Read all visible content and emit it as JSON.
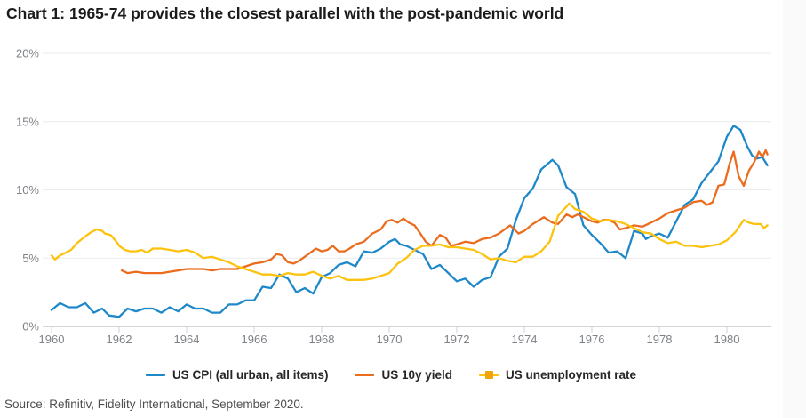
{
  "title": "Chart 1: 1965-74 provides the closest parallel with the post-pandemic world",
  "source": "Source: Refinitiv, Fidelity International, September 2020.",
  "colors": {
    "grid": "#e9ebee",
    "axis": "#a6abb2",
    "tick": "#c8d1e0",
    "axis_text": "#7e8287",
    "title_text": "#1b1b1b",
    "legend_text": "#262626",
    "source_text": "#4f4f4f"
  },
  "chart_data": {
    "type": "line",
    "title": "Chart 1: 1965-74 provides the closest parallel with the post-pandemic world",
    "xlabel": "",
    "ylabel": "",
    "grid": "horizontal",
    "legend_position": "bottom",
    "x_axis": {
      "min": 1960,
      "max": 1981.3,
      "tick_years": [
        1960,
        1962,
        1964,
        1966,
        1968,
        1970,
        1972,
        1974,
        1976,
        1978,
        1980
      ]
    },
    "y_axis": {
      "min": 0,
      "max": 20,
      "ticks": [
        0,
        5,
        10,
        15,
        20
      ],
      "tick_suffix": "%"
    },
    "series": [
      {
        "id": "us-cpi",
        "name": "US CPI (all urban, all items)",
        "color": "#1e88c8",
        "legend_marker": "line",
        "points": [
          [
            1960.0,
            1.2
          ],
          [
            1960.25,
            1.7
          ],
          [
            1960.5,
            1.4
          ],
          [
            1960.75,
            1.4
          ],
          [
            1961.0,
            1.7
          ],
          [
            1961.25,
            1.0
          ],
          [
            1961.5,
            1.3
          ],
          [
            1961.7,
            0.8
          ],
          [
            1962.0,
            0.7
          ],
          [
            1962.25,
            1.3
          ],
          [
            1962.5,
            1.1
          ],
          [
            1962.75,
            1.3
          ],
          [
            1963.0,
            1.3
          ],
          [
            1963.25,
            1.0
          ],
          [
            1963.5,
            1.4
          ],
          [
            1963.75,
            1.1
          ],
          [
            1964.0,
            1.6
          ],
          [
            1964.25,
            1.3
          ],
          [
            1964.5,
            1.3
          ],
          [
            1964.75,
            1.0
          ],
          [
            1965.0,
            1.0
          ],
          [
            1965.25,
            1.6
          ],
          [
            1965.5,
            1.6
          ],
          [
            1965.75,
            1.9
          ],
          [
            1966.0,
            1.9
          ],
          [
            1966.25,
            2.9
          ],
          [
            1966.5,
            2.8
          ],
          [
            1966.75,
            3.8
          ],
          [
            1967.0,
            3.5
          ],
          [
            1967.25,
            2.5
          ],
          [
            1967.5,
            2.8
          ],
          [
            1967.75,
            2.4
          ],
          [
            1968.0,
            3.6
          ],
          [
            1968.25,
            3.9
          ],
          [
            1968.5,
            4.5
          ],
          [
            1968.75,
            4.7
          ],
          [
            1969.0,
            4.4
          ],
          [
            1969.25,
            5.5
          ],
          [
            1969.5,
            5.4
          ],
          [
            1969.75,
            5.7
          ],
          [
            1970.0,
            6.2
          ],
          [
            1970.17,
            6.4
          ],
          [
            1970.33,
            6.0
          ],
          [
            1970.5,
            5.9
          ],
          [
            1970.75,
            5.6
          ],
          [
            1971.0,
            5.3
          ],
          [
            1971.25,
            4.2
          ],
          [
            1971.5,
            4.5
          ],
          [
            1971.75,
            3.9
          ],
          [
            1972.0,
            3.3
          ],
          [
            1972.25,
            3.5
          ],
          [
            1972.5,
            2.9
          ],
          [
            1972.75,
            3.4
          ],
          [
            1973.0,
            3.6
          ],
          [
            1973.25,
            5.1
          ],
          [
            1973.5,
            5.7
          ],
          [
            1973.75,
            7.8
          ],
          [
            1974.0,
            9.4
          ],
          [
            1974.25,
            10.1
          ],
          [
            1974.5,
            11.5
          ],
          [
            1974.83,
            12.2
          ],
          [
            1975.0,
            11.8
          ],
          [
            1975.25,
            10.2
          ],
          [
            1975.5,
            9.7
          ],
          [
            1975.75,
            7.4
          ],
          [
            1976.0,
            6.7
          ],
          [
            1976.25,
            6.1
          ],
          [
            1976.5,
            5.4
          ],
          [
            1976.75,
            5.5
          ],
          [
            1977.0,
            5.0
          ],
          [
            1977.25,
            7.0
          ],
          [
            1977.5,
            6.8
          ],
          [
            1977.6,
            6.4
          ],
          [
            1977.75,
            6.6
          ],
          [
            1978.0,
            6.8
          ],
          [
            1978.25,
            6.5
          ],
          [
            1978.5,
            7.7
          ],
          [
            1978.75,
            8.9
          ],
          [
            1979.0,
            9.3
          ],
          [
            1979.25,
            10.5
          ],
          [
            1979.5,
            11.3
          ],
          [
            1979.75,
            12.1
          ],
          [
            1980.0,
            13.9
          ],
          [
            1980.2,
            14.7
          ],
          [
            1980.4,
            14.4
          ],
          [
            1980.6,
            13.2
          ],
          [
            1980.75,
            12.5
          ],
          [
            1980.9,
            12.3
          ],
          [
            1981.05,
            12.4
          ],
          [
            1981.2,
            11.8
          ]
        ]
      },
      {
        "id": "us-10y-yield",
        "name": "US 10y yield",
        "color": "#eb6c1e",
        "legend_marker": "line",
        "points": [
          [
            1962.08,
            4.1
          ],
          [
            1962.25,
            3.9
          ],
          [
            1962.5,
            4.0
          ],
          [
            1962.75,
            3.9
          ],
          [
            1963.0,
            3.9
          ],
          [
            1963.25,
            3.9
          ],
          [
            1963.5,
            4.0
          ],
          [
            1963.75,
            4.1
          ],
          [
            1964.0,
            4.2
          ],
          [
            1964.25,
            4.2
          ],
          [
            1964.5,
            4.2
          ],
          [
            1964.75,
            4.1
          ],
          [
            1965.0,
            4.2
          ],
          [
            1965.25,
            4.2
          ],
          [
            1965.5,
            4.2
          ],
          [
            1965.75,
            4.4
          ],
          [
            1966.0,
            4.6
          ],
          [
            1966.25,
            4.7
          ],
          [
            1966.5,
            4.9
          ],
          [
            1966.67,
            5.3
          ],
          [
            1966.83,
            5.2
          ],
          [
            1967.0,
            4.7
          ],
          [
            1967.17,
            4.6
          ],
          [
            1967.33,
            4.8
          ],
          [
            1967.5,
            5.1
          ],
          [
            1967.67,
            5.4
          ],
          [
            1967.83,
            5.7
          ],
          [
            1968.0,
            5.5
          ],
          [
            1968.17,
            5.6
          ],
          [
            1968.33,
            5.9
          ],
          [
            1968.5,
            5.5
          ],
          [
            1968.67,
            5.5
          ],
          [
            1968.83,
            5.7
          ],
          [
            1969.0,
            6.0
          ],
          [
            1969.25,
            6.2
          ],
          [
            1969.5,
            6.8
          ],
          [
            1969.75,
            7.1
          ],
          [
            1969.92,
            7.7
          ],
          [
            1970.08,
            7.8
          ],
          [
            1970.25,
            7.6
          ],
          [
            1970.42,
            7.9
          ],
          [
            1970.58,
            7.6
          ],
          [
            1970.75,
            7.4
          ],
          [
            1970.92,
            6.8
          ],
          [
            1971.08,
            6.2
          ],
          [
            1971.25,
            5.9
          ],
          [
            1971.5,
            6.7
          ],
          [
            1971.67,
            6.5
          ],
          [
            1971.83,
            5.9
          ],
          [
            1972.0,
            6.0
          ],
          [
            1972.25,
            6.2
          ],
          [
            1972.5,
            6.1
          ],
          [
            1972.75,
            6.4
          ],
          [
            1973.0,
            6.5
          ],
          [
            1973.25,
            6.8
          ],
          [
            1973.58,
            7.4
          ],
          [
            1973.83,
            6.8
          ],
          [
            1974.0,
            7.0
          ],
          [
            1974.25,
            7.5
          ],
          [
            1974.58,
            8.0
          ],
          [
            1974.83,
            7.6
          ],
          [
            1975.0,
            7.5
          ],
          [
            1975.25,
            8.2
          ],
          [
            1975.42,
            8.0
          ],
          [
            1975.58,
            8.2
          ],
          [
            1975.75,
            8.0
          ],
          [
            1976.0,
            7.7
          ],
          [
            1976.17,
            7.6
          ],
          [
            1976.33,
            7.8
          ],
          [
            1976.5,
            7.8
          ],
          [
            1976.67,
            7.6
          ],
          [
            1976.83,
            7.1
          ],
          [
            1977.0,
            7.2
          ],
          [
            1977.25,
            7.4
          ],
          [
            1977.5,
            7.3
          ],
          [
            1977.75,
            7.6
          ],
          [
            1978.0,
            7.9
          ],
          [
            1978.25,
            8.3
          ],
          [
            1978.5,
            8.5
          ],
          [
            1978.75,
            8.7
          ],
          [
            1979.0,
            9.1
          ],
          [
            1979.25,
            9.2
          ],
          [
            1979.42,
            8.9
          ],
          [
            1979.58,
            9.1
          ],
          [
            1979.75,
            10.3
          ],
          [
            1979.92,
            10.4
          ],
          [
            1980.08,
            11.9
          ],
          [
            1980.2,
            12.8
          ],
          [
            1980.35,
            11.0
          ],
          [
            1980.5,
            10.3
          ],
          [
            1980.65,
            11.4
          ],
          [
            1980.8,
            12.0
          ],
          [
            1980.95,
            12.8
          ],
          [
            1981.05,
            12.4
          ],
          [
            1981.15,
            12.9
          ],
          [
            1981.2,
            12.6
          ]
        ]
      },
      {
        "id": "us-unemployment",
        "name": "US unemployment rate",
        "color": "#fdc20e",
        "marker_color": "#f2a50a",
        "legend_marker": "line-square",
        "points": [
          [
            1960.0,
            5.2
          ],
          [
            1960.1,
            4.9
          ],
          [
            1960.25,
            5.2
          ],
          [
            1960.42,
            5.4
          ],
          [
            1960.58,
            5.6
          ],
          [
            1960.75,
            6.1
          ],
          [
            1961.0,
            6.6
          ],
          [
            1961.17,
            6.9
          ],
          [
            1961.33,
            7.1
          ],
          [
            1961.5,
            7.0
          ],
          [
            1961.58,
            6.8
          ],
          [
            1961.75,
            6.7
          ],
          [
            1961.92,
            6.2
          ],
          [
            1962.0,
            5.9
          ],
          [
            1962.17,
            5.6
          ],
          [
            1962.33,
            5.5
          ],
          [
            1962.5,
            5.5
          ],
          [
            1962.67,
            5.6
          ],
          [
            1962.83,
            5.4
          ],
          [
            1963.0,
            5.7
          ],
          [
            1963.25,
            5.7
          ],
          [
            1963.5,
            5.6
          ],
          [
            1963.75,
            5.5
          ],
          [
            1964.0,
            5.6
          ],
          [
            1964.25,
            5.4
          ],
          [
            1964.5,
            5.0
          ],
          [
            1964.75,
            5.1
          ],
          [
            1965.0,
            4.9
          ],
          [
            1965.25,
            4.7
          ],
          [
            1965.5,
            4.4
          ],
          [
            1965.75,
            4.2
          ],
          [
            1966.0,
            4.0
          ],
          [
            1966.25,
            3.8
          ],
          [
            1966.5,
            3.8
          ],
          [
            1966.75,
            3.7
          ],
          [
            1967.0,
            3.9
          ],
          [
            1967.25,
            3.8
          ],
          [
            1967.5,
            3.8
          ],
          [
            1967.75,
            4.0
          ],
          [
            1968.0,
            3.7
          ],
          [
            1968.25,
            3.5
          ],
          [
            1968.5,
            3.7
          ],
          [
            1968.75,
            3.4
          ],
          [
            1969.0,
            3.4
          ],
          [
            1969.25,
            3.4
          ],
          [
            1969.5,
            3.5
          ],
          [
            1969.75,
            3.7
          ],
          [
            1970.0,
            3.9
          ],
          [
            1970.25,
            4.6
          ],
          [
            1970.5,
            5.0
          ],
          [
            1970.75,
            5.6
          ],
          [
            1971.0,
            5.9
          ],
          [
            1971.25,
            5.9
          ],
          [
            1971.5,
            6.0
          ],
          [
            1971.75,
            5.8
          ],
          [
            1972.0,
            5.8
          ],
          [
            1972.25,
            5.7
          ],
          [
            1972.5,
            5.6
          ],
          [
            1972.75,
            5.3
          ],
          [
            1973.0,
            4.9
          ],
          [
            1973.25,
            5.0
          ],
          [
            1973.5,
            4.8
          ],
          [
            1973.75,
            4.7
          ],
          [
            1974.0,
            5.1
          ],
          [
            1974.25,
            5.1
          ],
          [
            1974.5,
            5.5
          ],
          [
            1974.75,
            6.2
          ],
          [
            1975.0,
            8.1
          ],
          [
            1975.33,
            9.0
          ],
          [
            1975.5,
            8.6
          ],
          [
            1975.75,
            8.4
          ],
          [
            1976.0,
            7.9
          ],
          [
            1976.25,
            7.7
          ],
          [
            1976.5,
            7.8
          ],
          [
            1976.75,
            7.7
          ],
          [
            1977.0,
            7.5
          ],
          [
            1977.25,
            7.2
          ],
          [
            1977.5,
            6.9
          ],
          [
            1977.75,
            6.8
          ],
          [
            1978.0,
            6.4
          ],
          [
            1978.25,
            6.1
          ],
          [
            1978.5,
            6.2
          ],
          [
            1978.75,
            5.9
          ],
          [
            1979.0,
            5.9
          ],
          [
            1979.25,
            5.8
          ],
          [
            1979.5,
            5.9
          ],
          [
            1979.75,
            6.0
          ],
          [
            1980.0,
            6.3
          ],
          [
            1980.25,
            6.9
          ],
          [
            1980.5,
            7.8
          ],
          [
            1980.65,
            7.6
          ],
          [
            1980.8,
            7.5
          ],
          [
            1981.0,
            7.5
          ],
          [
            1981.1,
            7.2
          ],
          [
            1981.2,
            7.4
          ]
        ]
      }
    ]
  }
}
